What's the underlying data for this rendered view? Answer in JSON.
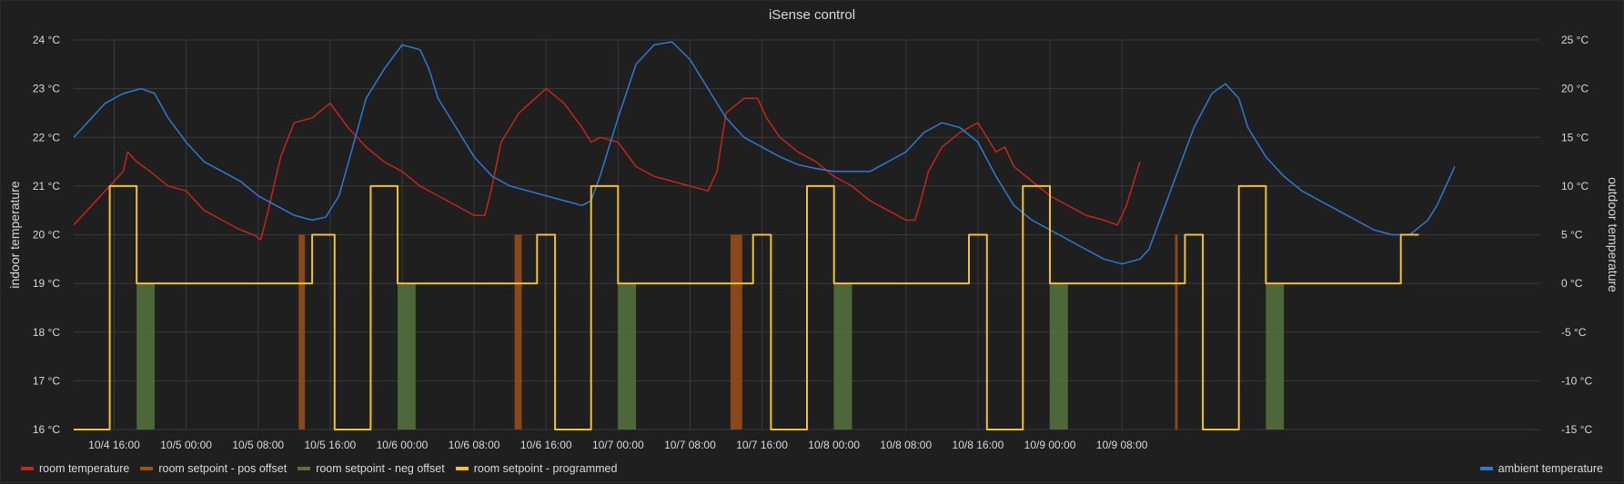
{
  "panel": {
    "title": "iSense control"
  },
  "chart_data": {
    "type": "line",
    "title": "iSense control",
    "ylabel_left": "indoor temperature",
    "ylabel_right": "outdoor temperature",
    "ylim_left": [
      16,
      24
    ],
    "ylim_right": [
      -15,
      25
    ],
    "yticks_left": [
      "24 °C",
      "23 °C",
      "22 °C",
      "21 °C",
      "20 °C",
      "19 °C",
      "18 °C",
      "17 °C",
      "16 °C"
    ],
    "yticks_right": [
      "25 °C",
      "20 °C",
      "15 °C",
      "10 °C",
      "5 °C",
      "0 °C",
      "-5 °C",
      "-10 °C",
      "-15 °C"
    ],
    "xlim_hours": [
      -4.5,
      158.5
    ],
    "xticks": [
      {
        "h": 0,
        "label": "10/4 16:00"
      },
      {
        "h": 8,
        "label": "10/5 00:00"
      },
      {
        "h": 16,
        "label": "10/5 08:00"
      },
      {
        "h": 24,
        "label": "10/5 16:00"
      },
      {
        "h": 32,
        "label": "10/6 00:00"
      },
      {
        "h": 40,
        "label": "10/6 08:00"
      },
      {
        "h": 48,
        "label": "10/6 16:00"
      },
      {
        "h": 56,
        "label": "10/7 00:00"
      },
      {
        "h": 64,
        "label": "10/7 08:00"
      },
      {
        "h": 72,
        "label": "10/7 16:00"
      },
      {
        "h": 80,
        "label": "10/8 00:00"
      },
      {
        "h": 88,
        "label": "10/8 08:00"
      },
      {
        "h": 96,
        "label": "10/8 16:00"
      },
      {
        "h": 104,
        "label": "10/9 00:00"
      },
      {
        "h": 112,
        "label": "10/9 08:00"
      }
    ],
    "grid": true,
    "colors": {
      "room_temperature": "#c4271a",
      "pos_offset": "#9e4f1a",
      "neg_offset": "#56733f",
      "programmed": "#f2c033",
      "ambient": "#2f7bd1",
      "grid": "#3a3a3c"
    },
    "series": [
      {
        "name": "room temperature",
        "axis": "left",
        "points": [
          [
            -4.5,
            20.2
          ],
          [
            -3,
            20.5
          ],
          [
            -1,
            20.9
          ],
          [
            1,
            21.3
          ],
          [
            1.5,
            21.7
          ],
          [
            2.5,
            21.5
          ],
          [
            4,
            21.3
          ],
          [
            6,
            21.0
          ],
          [
            8,
            20.9
          ],
          [
            10,
            20.5
          ],
          [
            12,
            20.3
          ],
          [
            14,
            20.1
          ],
          [
            15.5,
            20.0
          ],
          [
            16.3,
            19.9
          ],
          [
            17,
            20.4
          ],
          [
            18.5,
            21.6
          ],
          [
            20,
            22.3
          ],
          [
            22,
            22.4
          ],
          [
            24,
            22.7
          ],
          [
            26,
            22.2
          ],
          [
            28,
            21.8
          ],
          [
            30,
            21.5
          ],
          [
            32,
            21.3
          ],
          [
            34,
            21.0
          ],
          [
            36,
            20.8
          ],
          [
            38,
            20.6
          ],
          [
            40,
            20.4
          ],
          [
            41.2,
            20.4
          ],
          [
            42,
            21.0
          ],
          [
            43,
            21.9
          ],
          [
            45,
            22.5
          ],
          [
            48,
            23.0
          ],
          [
            50,
            22.7
          ],
          [
            52,
            22.2
          ],
          [
            53,
            21.9
          ],
          [
            54,
            22.0
          ],
          [
            56,
            21.9
          ],
          [
            58,
            21.4
          ],
          [
            60,
            21.2
          ],
          [
            62,
            21.1
          ],
          [
            64,
            21.0
          ],
          [
            66,
            20.9
          ],
          [
            67,
            21.3
          ],
          [
            68,
            22.5
          ],
          [
            70,
            22.8
          ],
          [
            71.5,
            22.8
          ],
          [
            72.5,
            22.4
          ],
          [
            74,
            22.0
          ],
          [
            76,
            21.7
          ],
          [
            78,
            21.5
          ],
          [
            80,
            21.2
          ],
          [
            82,
            21.0
          ],
          [
            84,
            20.7
          ],
          [
            86,
            20.5
          ],
          [
            88,
            20.3
          ],
          [
            89,
            20.3
          ],
          [
            89.5,
            20.6
          ],
          [
            90.5,
            21.3
          ],
          [
            92,
            21.8
          ],
          [
            94,
            22.1
          ],
          [
            96,
            22.3
          ],
          [
            97,
            22.0
          ],
          [
            98,
            21.7
          ],
          [
            99,
            21.8
          ],
          [
            100,
            21.4
          ],
          [
            102,
            21.1
          ],
          [
            104,
            20.8
          ],
          [
            106,
            20.6
          ],
          [
            108,
            20.4
          ],
          [
            110,
            20.3
          ],
          [
            111.5,
            20.2
          ],
          [
            112.5,
            20.6
          ],
          [
            113.5,
            21.2
          ],
          [
            114,
            21.5
          ]
        ]
      },
      {
        "name": "ambient temperature",
        "axis": "right",
        "points": [
          [
            -4.5,
            15
          ],
          [
            -3,
            16.5
          ],
          [
            -1,
            18.5
          ],
          [
            1,
            19.5
          ],
          [
            3,
            20.0
          ],
          [
            4.5,
            19.5
          ],
          [
            6,
            17
          ],
          [
            8,
            14.5
          ],
          [
            10,
            12.5
          ],
          [
            12,
            11.5
          ],
          [
            14,
            10.5
          ],
          [
            16,
            9
          ],
          [
            18,
            8
          ],
          [
            20,
            7
          ],
          [
            22,
            6.5
          ],
          [
            23.5,
            6.8
          ],
          [
            25,
            9
          ],
          [
            26.5,
            14
          ],
          [
            28,
            19
          ],
          [
            30,
            22
          ],
          [
            32,
            24.5
          ],
          [
            34,
            24.0
          ],
          [
            35,
            22
          ],
          [
            36,
            19
          ],
          [
            38,
            16
          ],
          [
            40,
            13
          ],
          [
            42,
            11
          ],
          [
            44,
            10
          ],
          [
            46,
            9.5
          ],
          [
            48,
            9
          ],
          [
            50,
            8.5
          ],
          [
            52,
            8
          ],
          [
            53,
            8.5
          ],
          [
            54,
            11
          ],
          [
            56,
            17
          ],
          [
            58,
            22.5
          ],
          [
            60,
            24.5
          ],
          [
            62,
            24.8
          ],
          [
            64,
            23
          ],
          [
            66,
            20
          ],
          [
            68,
            17
          ],
          [
            70,
            15
          ],
          [
            72,
            14
          ],
          [
            74,
            13
          ],
          [
            76,
            12.2
          ],
          [
            78,
            11.8
          ],
          [
            80,
            11.5
          ],
          [
            82,
            11.5
          ],
          [
            84,
            11.5
          ],
          [
            86,
            12.5
          ],
          [
            88,
            13.5
          ],
          [
            90,
            15.5
          ],
          [
            92,
            16.5
          ],
          [
            94,
            16.0
          ],
          [
            96,
            14.5
          ],
          [
            98,
            11
          ],
          [
            100,
            8
          ],
          [
            102,
            6.5
          ],
          [
            104,
            5.5
          ],
          [
            106,
            4.5
          ],
          [
            108,
            3.5
          ],
          [
            110,
            2.5
          ],
          [
            112,
            2
          ],
          [
            114,
            2.5
          ],
          [
            115,
            3.5
          ],
          [
            116,
            6
          ],
          [
            118,
            11
          ],
          [
            120,
            16
          ],
          [
            122,
            19.5
          ],
          [
            123.5,
            20.5
          ],
          [
            125,
            19
          ],
          [
            126,
            16
          ],
          [
            128,
            13
          ],
          [
            130,
            11
          ],
          [
            132,
            9.5
          ],
          [
            134,
            8.5
          ],
          [
            136,
            7.5
          ],
          [
            138,
            6.5
          ],
          [
            140,
            5.5
          ],
          [
            142,
            5.0
          ],
          [
            144,
            5.0
          ],
          [
            146,
            6.5
          ],
          [
            147,
            8
          ],
          [
            148,
            10
          ],
          [
            149,
            12
          ]
        ]
      },
      {
        "name": "room setpoint - programmed",
        "axis": "left",
        "points": [
          [
            -4.5,
            16
          ],
          [
            -0.5,
            16
          ],
          [
            -0.5,
            21
          ],
          [
            2.5,
            21
          ],
          [
            2.5,
            19
          ],
          [
            22,
            19
          ],
          [
            22,
            20
          ],
          [
            24.5,
            20
          ],
          [
            24.5,
            16
          ],
          [
            28.5,
            16
          ],
          [
            28.5,
            21
          ],
          [
            31.5,
            21
          ],
          [
            31.5,
            19
          ],
          [
            47,
            19
          ],
          [
            47,
            20
          ],
          [
            49,
            20
          ],
          [
            49,
            16
          ],
          [
            53,
            16
          ],
          [
            53,
            21
          ],
          [
            56,
            21
          ],
          [
            56,
            19
          ],
          [
            71,
            19
          ],
          [
            71,
            20
          ],
          [
            73,
            20
          ],
          [
            73,
            16
          ],
          [
            77,
            16
          ],
          [
            77,
            21
          ],
          [
            80,
            21
          ],
          [
            80,
            19
          ],
          [
            95,
            19
          ],
          [
            95,
            20
          ],
          [
            97,
            20
          ],
          [
            97,
            16
          ],
          [
            101,
            16
          ],
          [
            101,
            21
          ],
          [
            104,
            21
          ],
          [
            104,
            19
          ],
          [
            119,
            19
          ],
          [
            119,
            20
          ],
          [
            121,
            20
          ],
          [
            121,
            16
          ],
          [
            125,
            16
          ],
          [
            125,
            21
          ],
          [
            128,
            21
          ],
          [
            128,
            19
          ],
          [
            143,
            19
          ],
          [
            143,
            20
          ],
          [
            145,
            20
          ]
        ]
      }
    ],
    "bands": [
      {
        "name": "room setpoint - pos offset",
        "ranges": [
          [
            20.5,
            21.2
          ],
          [
            44.5,
            45.3
          ],
          [
            68.5,
            69.8
          ],
          [
            117.9,
            118.2
          ]
        ]
      },
      {
        "name": "room setpoint - neg offset",
        "ranges": [
          [
            2.5,
            4.5
          ],
          [
            31.5,
            33.5
          ],
          [
            56,
            58
          ],
          [
            80,
            82
          ],
          [
            104,
            106
          ],
          [
            128,
            130
          ]
        ]
      }
    ]
  },
  "legend": {
    "items": [
      {
        "label": "room temperature",
        "color": "#c4271a"
      },
      {
        "label": "room setpoint - pos offset",
        "color": "#9e4f1a"
      },
      {
        "label": "room setpoint - neg offset",
        "color": "#56733f"
      },
      {
        "label": "room setpoint - programmed",
        "color": "#f2c033"
      }
    ],
    "right_items": [
      {
        "label": "ambient temperature",
        "color": "#2f7bd1"
      }
    ]
  }
}
